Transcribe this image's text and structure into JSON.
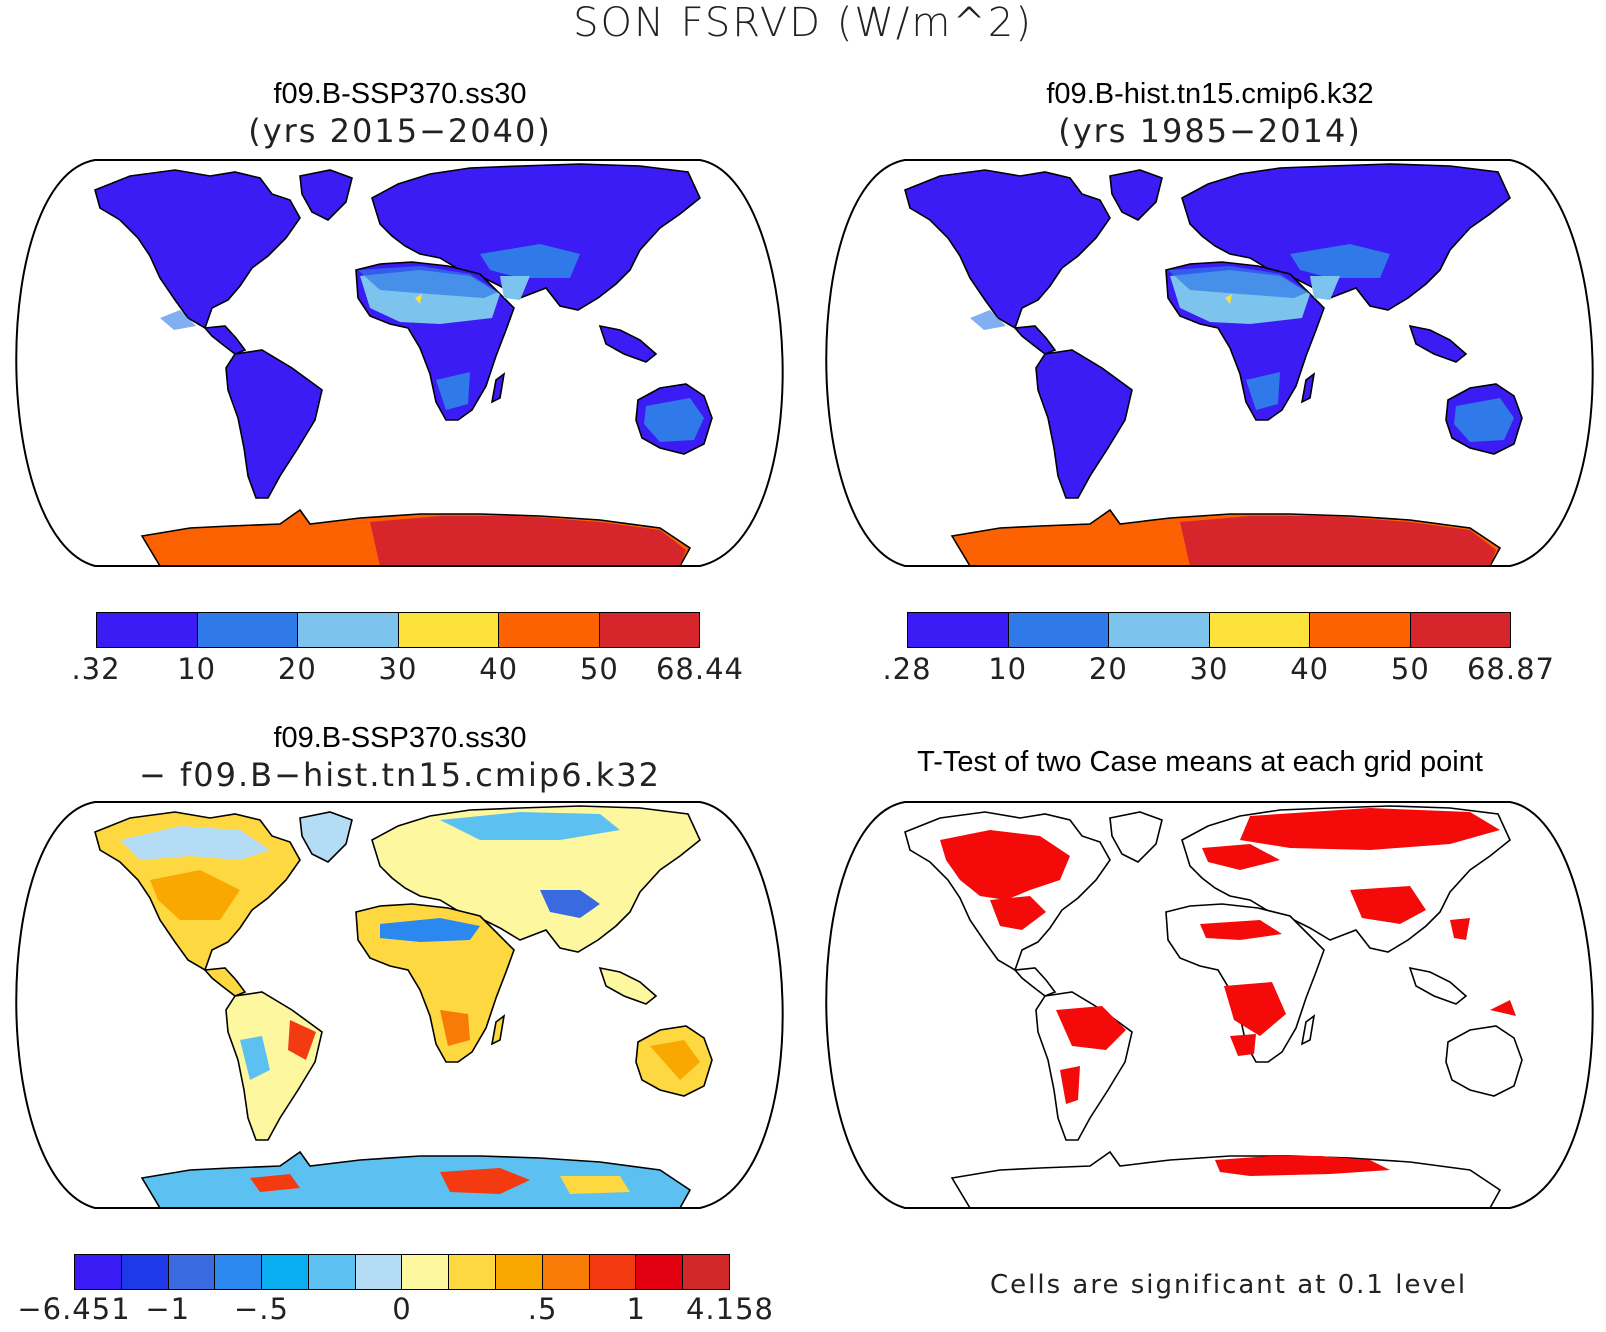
{
  "figure": {
    "title": "SON FSRVD (W/m^2)"
  },
  "panels": {
    "p1": {
      "title": "f09.B-SSP370.ss30",
      "subtitle": "(yrs 2015−2040)",
      "colorbar": {
        "colors": [
          "#3c1cf5",
          "#2f7ae8",
          "#7cc3ee",
          "#fce23a",
          "#fd6202",
          "#d7262b"
        ],
        "labels": [
          ".32",
          "10",
          "20",
          "30",
          "40",
          "50",
          "68.44"
        ]
      }
    },
    "p2": {
      "title": "f09.B-hist.tn15.cmip6.k32",
      "subtitle": "(yrs 1985−2014)",
      "colorbar": {
        "colors": [
          "#3c1cf5",
          "#2f7ae8",
          "#7cc3ee",
          "#fce23a",
          "#fd6202",
          "#d7262b"
        ],
        "labels": [
          ".28",
          "10",
          "20",
          "30",
          "40",
          "50",
          "68.87"
        ]
      }
    },
    "p3": {
      "title": "f09.B-SSP370.ss30",
      "subtitle": "− f09.B−hist.tn15.cmip6.k32",
      "colorbar": {
        "colors": [
          "#3c1cf5",
          "#1e3ae8",
          "#3a6ae0",
          "#2a88ee",
          "#0aaef0",
          "#5cc0f0",
          "#b4dcf4",
          "#fdf8a0",
          "#fdd840",
          "#f8a800",
          "#f87b08",
          "#f43a10",
          "#e00010",
          "#d02828"
        ],
        "labels": [
          "−6.451",
          "−1",
          "−.5",
          "0",
          ".5",
          "1",
          "4.158"
        ]
      }
    },
    "p4": {
      "title": "T-Test of two Case means at each grid point",
      "note": "Cells are significant at 0.1 level",
      "significant_color": "#f50a0a"
    }
  }
}
